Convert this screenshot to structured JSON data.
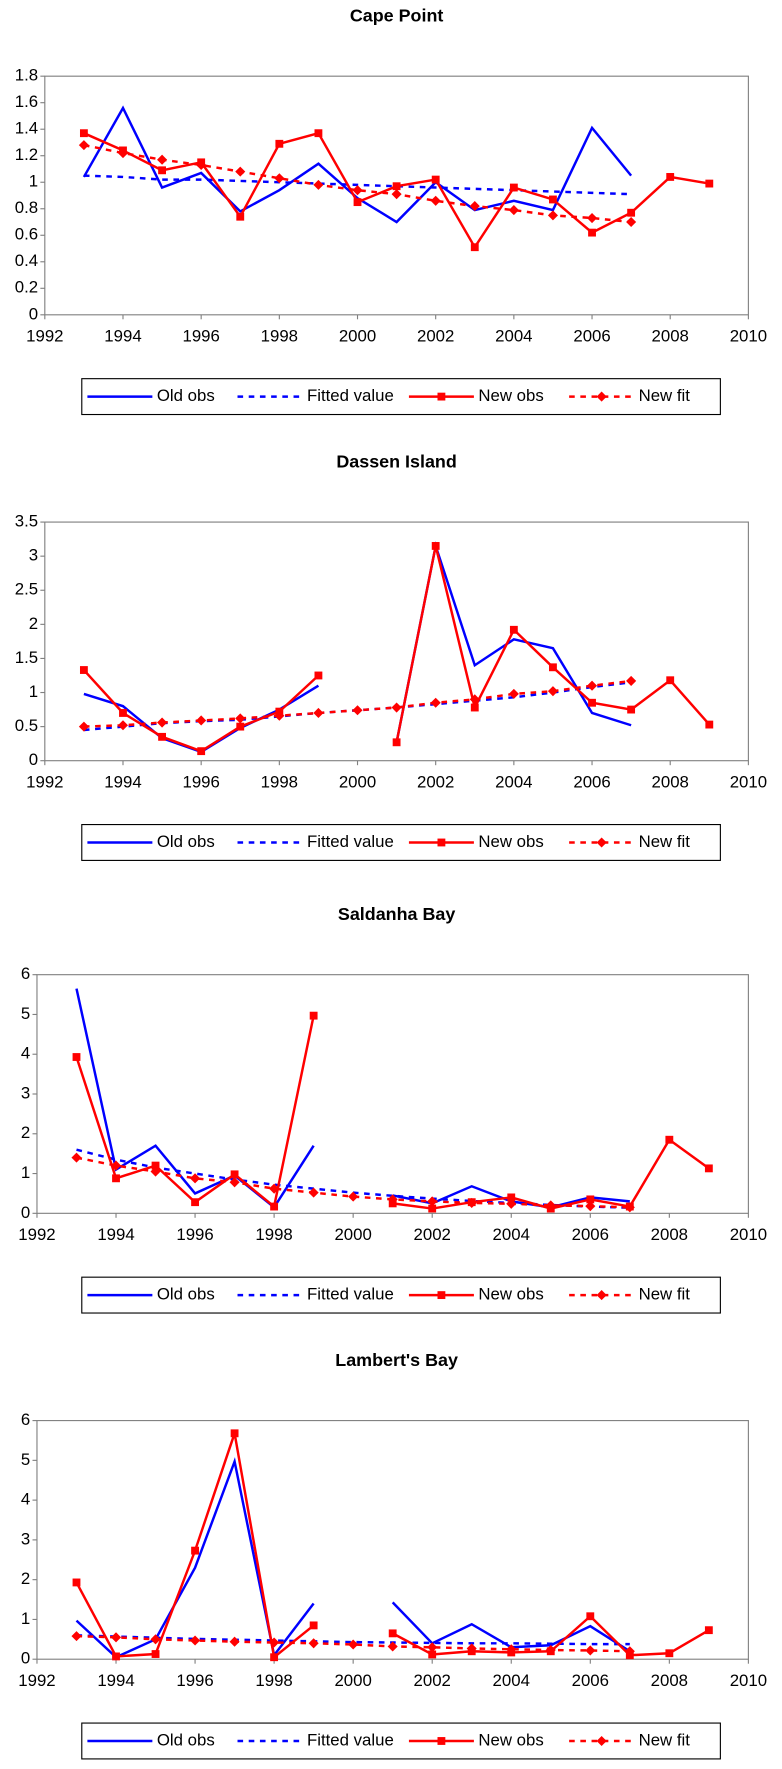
{
  "chart_data": [
    {
      "type": "line",
      "title": "Cape Point",
      "x": [
        1993,
        1994,
        1995,
        1996,
        1997,
        1998,
        1999,
        2000,
        2001,
        2002,
        2003,
        2004,
        2005,
        2006,
        2007,
        2008,
        2009
      ],
      "xlim": [
        1992,
        2010
      ],
      "xticks": [
        1992,
        1994,
        1996,
        1998,
        2000,
        2002,
        2004,
        2006,
        2008,
        2010
      ],
      "ylim": [
        0,
        1.8
      ],
      "yticks": [
        0,
        0.2,
        0.4,
        0.6,
        0.8,
        1,
        1.2,
        1.4,
        1.6,
        1.8
      ],
      "series": [
        {
          "name": "Old obs",
          "color": "#0000ff",
          "dash": false,
          "marker": "none",
          "values": [
            1.04,
            1.56,
            0.96,
            1.07,
            0.78,
            0.94,
            1.14,
            0.88,
            0.7,
            1.0,
            0.79,
            0.86,
            0.79,
            1.41,
            1.05,
            null,
            null
          ]
        },
        {
          "name": "Fitted value",
          "color": "#0000ff",
          "dash": true,
          "marker": "none",
          "values": [
            1.05,
            1.04,
            1.02,
            1.02,
            1.01,
            1.0,
            0.99,
            0.98,
            0.97,
            0.96,
            0.95,
            0.94,
            0.93,
            0.92,
            0.91,
            null,
            null
          ]
        },
        {
          "name": "New obs",
          "color": "#ff0000",
          "dash": false,
          "marker": "square",
          "values": [
            1.37,
            1.24,
            1.09,
            1.15,
            0.74,
            1.29,
            1.37,
            0.85,
            0.97,
            1.02,
            0.51,
            0.96,
            0.87,
            0.62,
            0.77,
            1.04,
            0.99
          ]
        },
        {
          "name": "New fit",
          "color": "#ff0000",
          "dash": true,
          "marker": "diamond",
          "values": [
            1.28,
            1.22,
            1.17,
            1.13,
            1.08,
            1.03,
            0.98,
            0.94,
            0.91,
            0.86,
            0.82,
            0.79,
            0.75,
            0.73,
            0.7,
            null,
            null
          ]
        }
      ],
      "legend": "bottom"
    },
    {
      "type": "line",
      "title": "Dassen Island",
      "x": [
        1993,
        1994,
        1995,
        1996,
        1997,
        1998,
        1999,
        2000,
        2001,
        2002,
        2003,
        2004,
        2005,
        2006,
        2007,
        2008,
        2009
      ],
      "xlim": [
        1992,
        2010
      ],
      "xticks": [
        1992,
        1994,
        1996,
        1998,
        2000,
        2002,
        2004,
        2006,
        2008,
        2010
      ],
      "ylim": [
        0,
        3.5
      ],
      "yticks": [
        0,
        0.5,
        1,
        1.5,
        2,
        2.5,
        3,
        3.5
      ],
      "series": [
        {
          "name": "Old obs",
          "color": "#0000ff",
          "dash": false,
          "marker": "none",
          "values": [
            0.98,
            0.8,
            0.33,
            0.13,
            0.48,
            0.75,
            1.1,
            null,
            0.27,
            3.15,
            1.4,
            1.78,
            1.65,
            0.7,
            0.52,
            null,
            null
          ]
        },
        {
          "name": "Fitted value",
          "color": "#0000ff",
          "dash": true,
          "marker": "none",
          "values": [
            0.45,
            0.5,
            0.55,
            0.58,
            0.6,
            0.65,
            0.7,
            0.74,
            0.78,
            0.83,
            0.88,
            0.93,
            1.0,
            1.08,
            1.15,
            null,
            null
          ]
        },
        {
          "name": "New obs",
          "color": "#ff0000",
          "dash": false,
          "marker": "square",
          "values": [
            1.33,
            0.7,
            0.35,
            0.14,
            0.5,
            0.72,
            1.25,
            null,
            0.27,
            3.15,
            0.78,
            1.92,
            1.37,
            0.85,
            0.75,
            1.18,
            0.53
          ]
        },
        {
          "name": "New fit",
          "color": "#ff0000",
          "dash": true,
          "marker": "diamond",
          "values": [
            0.5,
            0.52,
            0.56,
            0.59,
            0.62,
            0.66,
            0.7,
            0.74,
            0.78,
            0.85,
            0.9,
            0.98,
            1.02,
            1.1,
            1.17,
            null,
            null
          ]
        }
      ],
      "legend": "bottom"
    },
    {
      "type": "line",
      "title": "Saldanha Bay",
      "x": [
        1993,
        1994,
        1995,
        1996,
        1997,
        1998,
        1999,
        2000,
        2001,
        2002,
        2003,
        2004,
        2005,
        2006,
        2007,
        2008,
        2009
      ],
      "xlim": [
        1992,
        2010
      ],
      "xticks": [
        1992,
        1994,
        1996,
        1998,
        2000,
        2002,
        2004,
        2006,
        2008,
        2010
      ],
      "ylim": [
        0,
        6
      ],
      "yticks": [
        0,
        1,
        2,
        3,
        4,
        5,
        6
      ],
      "series": [
        {
          "name": "Old obs",
          "color": "#0000ff",
          "dash": false,
          "marker": "none",
          "values": [
            5.65,
            1.1,
            1.7,
            0.5,
            0.95,
            0.15,
            1.7,
            null,
            0.45,
            0.25,
            0.68,
            0.3,
            0.15,
            0.4,
            0.3,
            null,
            null
          ]
        },
        {
          "name": "Fitted value",
          "color": "#0000ff",
          "dash": true,
          "marker": "none",
          "values": [
            1.6,
            1.35,
            1.15,
            1.0,
            0.85,
            0.72,
            0.62,
            0.52,
            0.44,
            0.37,
            0.31,
            0.26,
            0.21,
            0.17,
            0.14,
            null,
            null
          ]
        },
        {
          "name": "New obs",
          "color": "#ff0000",
          "dash": false,
          "marker": "square",
          "values": [
            3.93,
            0.88,
            1.2,
            0.28,
            0.98,
            0.17,
            4.97,
            null,
            0.25,
            0.12,
            0.28,
            0.4,
            0.12,
            0.35,
            0.17,
            1.85,
            1.13
          ]
        },
        {
          "name": "New fit",
          "color": "#ff0000",
          "dash": true,
          "marker": "diamond",
          "values": [
            1.4,
            1.2,
            1.05,
            0.88,
            0.78,
            0.62,
            0.52,
            0.42,
            0.35,
            0.3,
            0.26,
            0.24,
            0.2,
            0.18,
            0.15,
            null,
            null
          ]
        }
      ],
      "legend": "bottom"
    },
    {
      "type": "line",
      "title": "Lambert's Bay",
      "x": [
        1993,
        1994,
        1995,
        1996,
        1997,
        1998,
        1999,
        2000,
        2001,
        2002,
        2003,
        2004,
        2005,
        2006,
        2007,
        2008,
        2009
      ],
      "xlim": [
        1992,
        2010
      ],
      "xticks": [
        1992,
        1994,
        1996,
        1998,
        2000,
        2002,
        2004,
        2006,
        2008,
        2010
      ],
      "ylim": [
        0,
        6
      ],
      "yticks": [
        0,
        1,
        2,
        3,
        4,
        5,
        6
      ],
      "series": [
        {
          "name": "Old obs",
          "color": "#0000ff",
          "dash": false,
          "marker": "none",
          "values": [
            0.97,
            0.05,
            0.5,
            2.3,
            4.97,
            0.1,
            1.4,
            null,
            1.43,
            0.4,
            0.88,
            0.3,
            0.35,
            0.83,
            0.2,
            null,
            null
          ]
        },
        {
          "name": "Fitted value",
          "color": "#0000ff",
          "dash": true,
          "marker": "none",
          "values": [
            0.6,
            0.57,
            0.54,
            0.51,
            0.49,
            0.47,
            0.45,
            0.43,
            0.42,
            0.41,
            0.4,
            0.4,
            0.39,
            0.38,
            0.38,
            null,
            null
          ]
        },
        {
          "name": "New obs",
          "color": "#ff0000",
          "dash": false,
          "marker": "square",
          "values": [
            1.93,
            0.07,
            0.13,
            2.73,
            5.68,
            0.05,
            0.85,
            null,
            0.65,
            0.12,
            0.2,
            0.17,
            0.2,
            1.08,
            0.1,
            0.15,
            0.73
          ]
        },
        {
          "name": "New fit",
          "color": "#ff0000",
          "dash": true,
          "marker": "diamond",
          "values": [
            0.58,
            0.55,
            0.5,
            0.47,
            0.44,
            0.42,
            0.4,
            0.37,
            0.32,
            0.3,
            0.27,
            0.25,
            0.23,
            0.22,
            0.2,
            null,
            null
          ]
        }
      ],
      "legend": "bottom"
    }
  ]
}
